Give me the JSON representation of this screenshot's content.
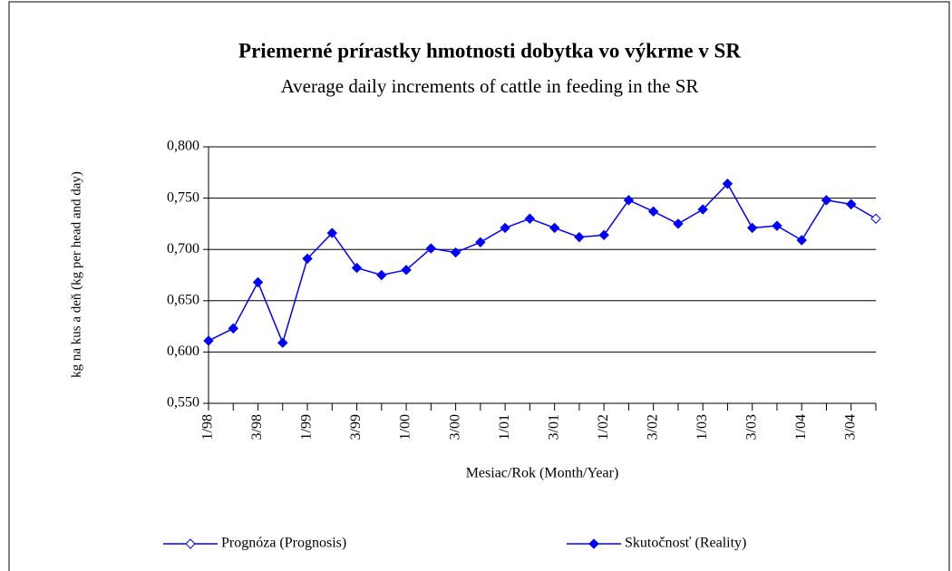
{
  "chart_data": {
    "type": "line",
    "title": "Priemerné prírastky hmotnosti dobytka vo výkrme v SR",
    "subtitle": "Average daily increments of cattle in feeding in the SR",
    "x_label": "Mesiac/Rok (Month/Year)",
    "y_label": "kg na kus a deň (kg per head and day)",
    "categories": [
      "1/98",
      null,
      "3/98",
      null,
      "1/99",
      null,
      "3/99",
      null,
      "1/00",
      null,
      "3/00",
      null,
      "1/01",
      null,
      "3/01",
      null,
      "1/02",
      null,
      "3/02",
      null,
      "1/03",
      null,
      "3/03",
      null,
      "1/04",
      null,
      "3/04",
      null
    ],
    "series": [
      {
        "name": "Prognóza (Prognosis)",
        "color": "#0000ff",
        "marker": "hollow-diamond",
        "values": [
          null,
          null,
          null,
          null,
          null,
          null,
          null,
          null,
          null,
          null,
          null,
          null,
          null,
          null,
          null,
          null,
          null,
          null,
          null,
          null,
          null,
          null,
          null,
          null,
          null,
          null,
          0.744,
          0.73
        ]
      },
      {
        "name": "Skutočnosť (Reality)",
        "color": "#0000ff",
        "marker": "filled-diamond",
        "values": [
          0.611,
          0.623,
          0.668,
          0.609,
          0.691,
          0.716,
          0.682,
          0.675,
          0.68,
          0.701,
          0.697,
          0.707,
          0.721,
          0.73,
          0.721,
          0.712,
          0.714,
          0.748,
          0.737,
          0.725,
          0.739,
          0.764,
          0.721,
          0.723,
          0.709,
          0.748,
          0.744,
          null
        ]
      }
    ],
    "ylim": [
      0.55,
      0.8
    ],
    "yticks": [
      {
        "value": 0.55,
        "label": "0,550"
      },
      {
        "value": 0.6,
        "label": "0,600"
      },
      {
        "value": 0.65,
        "label": "0,650"
      },
      {
        "value": 0.7,
        "label": "0,700"
      },
      {
        "value": 0.75,
        "label": "0,750"
      },
      {
        "value": 0.8,
        "label": "0,800"
      }
    ],
    "grid": true,
    "legend": "bottom"
  }
}
